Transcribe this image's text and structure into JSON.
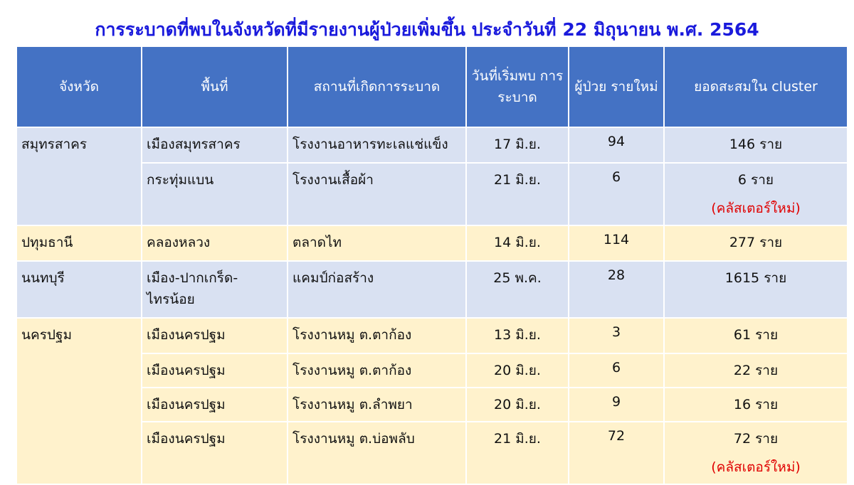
{
  "title": "การระบาดที่พบในจังหวัดที่มีรายงานผู้ป่วยเพิ่มขึ้น ประจำวันที่ 22 มิถุนายน พ.ศ. 2564",
  "headers": [
    "จังหวัด",
    "พื้นที่",
    "สถานที่เกิดการระบาด",
    "วันที่เริ่มพบ การระบาด",
    "ผู้ป่วย รายใหม่",
    "ยอดสะสมใน cluster"
  ],
  "colors": {
    "header": "#4472c4",
    "blue_rows": "#d9e1f2",
    "yellow_rows": "#fff2cc",
    "title": "#1a1adc",
    "note": "#e00000"
  },
  "groups": [
    {
      "province": "สมุทรสาคร",
      "rows": [
        {
          "area": "เมืองสมุทรสาคร",
          "place": "โรงงานอาหารทะเลแช่แข็ง",
          "date": "17 มิ.ย.",
          "new": "94",
          "total": "146 ราย",
          "note": ""
        },
        {
          "area": "กระทุ่มแบน",
          "place": "โรงงานเสื้อผ้า",
          "date": "21 มิ.ย.",
          "new": "6",
          "total": "6 ราย",
          "note": "(คลัสเตอร์ใหม่)"
        }
      ]
    },
    {
      "province": "ปทุมธานี",
      "rows": [
        {
          "area": "คลองหลวง",
          "place": "ตลาดไท",
          "date": "14 มิ.ย.",
          "new": "114",
          "total": "277 ราย",
          "note": ""
        }
      ]
    },
    {
      "province": "นนทบุรี",
      "rows": [
        {
          "area": "เมือง-ปากเกร็ด-ไทรน้อย",
          "place": "แคมป์ก่อสร้าง",
          "date": "25 พ.ค.",
          "new": "28",
          "total": "1615 ราย",
          "note": ""
        }
      ]
    },
    {
      "province": "นครปฐม",
      "rows": [
        {
          "area": "เมืองนครปฐม",
          "place": "โรงงานหมู ต.ตาก้อง",
          "date": "13 มิ.ย.",
          "new": "3",
          "total": "61 ราย",
          "note": ""
        },
        {
          "area": "เมืองนครปฐม",
          "place": "โรงงานหมู ต.ตาก้อง",
          "date": "20 มิ.ย.",
          "new": "6",
          "total": "22 ราย",
          "note": ""
        },
        {
          "area": "เมืองนครปฐม",
          "place": "โรงงานหมู ต.ลำพยา",
          "date": "20 มิ.ย.",
          "new": "9",
          "total": "16 ราย",
          "note": ""
        },
        {
          "area": "เมืองนครปฐม",
          "place": "โรงงานหมู ต.บ่อพลับ",
          "date": "21 มิ.ย.",
          "new": "72",
          "total": "72 ราย",
          "note": "(คลัสเตอร์ใหม่)"
        }
      ]
    }
  ]
}
